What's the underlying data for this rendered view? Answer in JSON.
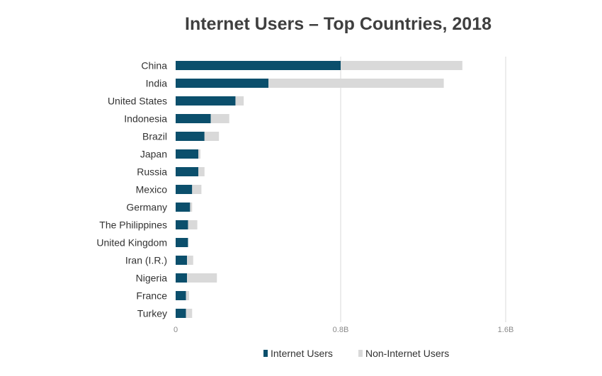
{
  "chart_data": {
    "type": "bar",
    "orientation": "horizontal",
    "stacked": true,
    "title": "Internet Users – Top Countries, 2018",
    "xlabel": "",
    "ylabel": "",
    "categories": [
      "China",
      "India",
      "United States",
      "Indonesia",
      "Brazil",
      "Japan",
      "Russia",
      "Mexico",
      "Germany",
      "The Philippines",
      "United Kingdom",
      "Iran (I.R.)",
      "Nigeria",
      "France",
      "Turkey"
    ],
    "series": [
      {
        "name": "Internet Users",
        "color": "#0b4f6c",
        "values": [
          0.8,
          0.45,
          0.29,
          0.17,
          0.14,
          0.11,
          0.11,
          0.08,
          0.07,
          0.06,
          0.06,
          0.055,
          0.055,
          0.05,
          0.05
        ]
      },
      {
        "name": "Non-Internet Users",
        "color": "#d9d9d9",
        "values": [
          0.59,
          0.85,
          0.04,
          0.09,
          0.07,
          0.01,
          0.03,
          0.045,
          0.01,
          0.045,
          0.0,
          0.03,
          0.145,
          0.015,
          0.03
        ]
      }
    ],
    "x_ticks": [
      {
        "value": 0,
        "label": "0"
      },
      {
        "value": 0.8,
        "label": "0.8B"
      },
      {
        "value": 1.6,
        "label": "1.6B"
      }
    ],
    "xlim": [
      0,
      1.6
    ],
    "grid": true,
    "legend_position": "bottom"
  }
}
